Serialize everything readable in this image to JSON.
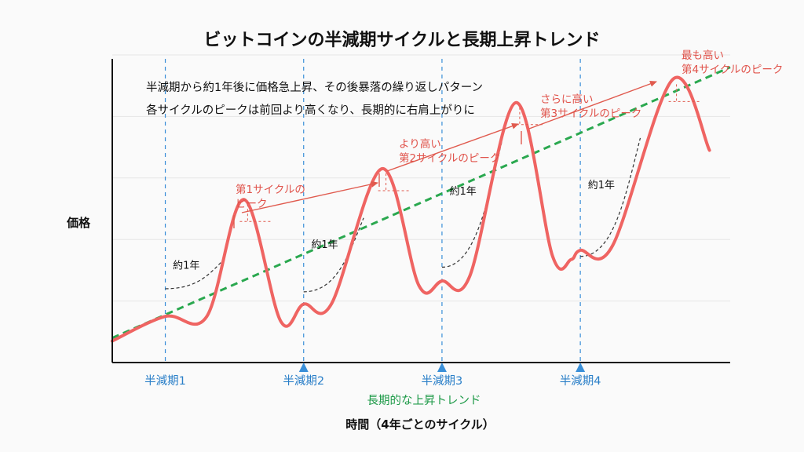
{
  "chart_data": {
    "type": "line",
    "title": "ビットコインの半減期サイクルと長期上昇トレンド",
    "annotations": [
      "半減期から約1年後に価格急上昇、その後暴落の繰り返しパターン",
      "各サイクルのピークは前回より高くなり、長期的に右肩上がりに"
    ],
    "xlabel": "時間（4年ごとのサイクル）",
    "ylabel": "価格",
    "grid": true,
    "halvings": [
      {
        "label": "半減期1",
        "t": 1.0
      },
      {
        "label": "半減期2",
        "t": 4.0
      },
      {
        "label": "半減期3",
        "t": 7.0
      },
      {
        "label": "半減期4",
        "t": 10.0
      }
    ],
    "xlim": [
      -0.15,
      13.25
    ],
    "ylim": [
      0,
      100
    ],
    "price_series": {
      "color": "#ef6462",
      "points": [
        [
          -0.15,
          7
        ],
        [
          1.0,
          15
        ],
        [
          1.9,
          15
        ],
        [
          2.7,
          53
        ],
        [
          3.5,
          13.5
        ],
        [
          4.0,
          19
        ],
        [
          4.6,
          19
        ],
        [
          5.7,
          63
        ],
        [
          6.5,
          25
        ],
        [
          7.0,
          26.5
        ],
        [
          7.6,
          28
        ],
        [
          8.6,
          84.5
        ],
        [
          9.4,
          34.5
        ],
        [
          9.8,
          33.5
        ],
        [
          10.0,
          36.5
        ],
        [
          10.7,
          38
        ],
        [
          12.0,
          92
        ],
        [
          12.8,
          69
        ]
      ]
    },
    "trend_line": {
      "label": "長期的な上昇トレンド",
      "color": "#2aa84f",
      "points": [
        [
          -0.15,
          8
        ],
        [
          13.25,
          96
        ]
      ]
    },
    "buildup_curves": [
      {
        "halving": 1,
        "label": "約1年",
        "points": [
          [
            1.0,
            24
          ],
          [
            2.3,
            34
          ]
        ]
      },
      {
        "halving": 2,
        "label": "約1年",
        "points": [
          [
            4.0,
            23
          ],
          [
            5.3,
            47
          ]
        ]
      },
      {
        "halving": 3,
        "label": "約1年",
        "points": [
          [
            7.0,
            31
          ],
          [
            8.3,
            72
          ]
        ]
      },
      {
        "halving": 4,
        "label": "約1年",
        "points": [
          [
            10.0,
            34.5
          ],
          [
            11.3,
            73
          ]
        ]
      }
    ],
    "peaks": [
      {
        "cycle": 1,
        "label_lines": [
          "第1サイクルの",
          "ピーク"
        ],
        "t": 2.7,
        "price": 53
      },
      {
        "cycle": 2,
        "label_lines": [
          "より高い",
          "第2サイクルのピーク"
        ],
        "t": 5.7,
        "price": 63
      },
      {
        "cycle": 3,
        "label_lines": [
          "さらに高い",
          "第3サイクルのピーク"
        ],
        "t": 8.6,
        "price": 84.5
      },
      {
        "cycle": 4,
        "label_lines": [
          "最も高い",
          "第4サイクルのピーク"
        ],
        "t": 12.0,
        "price": 92
      }
    ],
    "colors": {
      "halving": "#3a8fd8",
      "arrows": "#e05a4e",
      "buildup": "#333333",
      "grid": "#e6e6e6"
    }
  }
}
